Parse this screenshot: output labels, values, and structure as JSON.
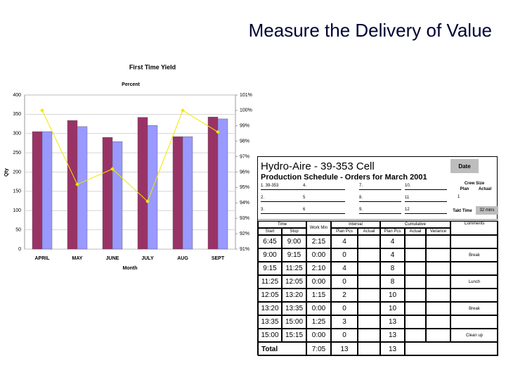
{
  "title": "Measure the Delivery of Value",
  "chart_data": {
    "type": "bar",
    "title": "First Time Yield",
    "subtitle": "Percent",
    "x_label": "Month",
    "y_label": "Qty",
    "categories": [
      "APRIL",
      "MAY",
      "JUNE",
      "JULY",
      "AUG",
      "SEPT"
    ],
    "ylim": [
      0,
      400
    ],
    "yticks": [
      0,
      50,
      100,
      150,
      200,
      250,
      300,
      350,
      400
    ],
    "y2lim": [
      91,
      101
    ],
    "y2ticks": [
      {
        "value": 91,
        "label": "91%"
      },
      {
        "value": 92,
        "label": "92%"
      },
      {
        "value": 93,
        "label": "93%"
      },
      {
        "value": 94,
        "label": "94%"
      },
      {
        "value": 95,
        "label": "95%"
      },
      {
        "value": 96,
        "label": "96%"
      },
      {
        "value": 97,
        "label": "97%"
      },
      {
        "value": 98,
        "label": "98%"
      },
      {
        "value": 99,
        "label": "99%"
      },
      {
        "value": 100,
        "label": "100%"
      },
      {
        "value": 101,
        "label": "101%"
      }
    ],
    "grid": true,
    "series": [
      {
        "type": "bar",
        "color": "#993366",
        "values": [
          305,
          334,
          290,
          342,
          292,
          343
        ]
      },
      {
        "type": "bar",
        "color": "#9999ff",
        "values": [
          305,
          318,
          279,
          321,
          292,
          338
        ]
      },
      {
        "type": "line",
        "color": "#f2e600",
        "axis": "y2",
        "values": [
          100,
          95.2,
          96.2,
          94.1,
          100,
          98.6
        ]
      }
    ]
  },
  "schedule": {
    "title": "Hydro-Aire - 39-353 Cell",
    "subtitle": "Production Schedule - Orders for March 2001",
    "date_label": "Date",
    "crew_size_label": "Crew Size",
    "crew_plan_label": "Plan",
    "crew_actual_label": "Actual",
    "crew_plan": "1",
    "takt_label": "Takt Time",
    "takt_value": "32 mins",
    "orders": [
      [
        "1. 39-353",
        "4.",
        "7.",
        "10."
      ],
      [
        "2.",
        "5",
        "8.",
        "11"
      ],
      [
        "3.",
        "6",
        "9.",
        "12"
      ]
    ],
    "headers": {
      "time": "Time",
      "start": "Start",
      "stop": "Stop",
      "work": "Work Min",
      "interval": "Interval",
      "interval_plan": "Plan Pcs",
      "interval_actual": "Actual",
      "cumulative": "Cumulative",
      "cum_plan": "Plan Pcs",
      "cum_actual": "Actual",
      "variance": "Variance",
      "comments": "Comments"
    },
    "rows": [
      {
        "start": "6:45",
        "stop": "9:00",
        "work": "2:15",
        "plan": "4",
        "cum_plan": "4"
      },
      {
        "start": "9:00",
        "stop": "9:15",
        "work": "0:00",
        "plan": "0",
        "cum_plan": "4",
        "comment": "Break"
      },
      {
        "start": "9:15",
        "stop": "11:25",
        "work": "2:10",
        "plan": "4",
        "cum_plan": "8"
      },
      {
        "start": "11:25",
        "stop": "12:05",
        "work": "0:00",
        "plan": "0",
        "cum_plan": "8",
        "comment": "Lunch"
      },
      {
        "start": "12:05",
        "stop": "13:20",
        "work": "1:15",
        "plan": "2",
        "cum_plan": "10"
      },
      {
        "start": "13:20",
        "stop": "13:35",
        "work": "0:00",
        "plan": "0",
        "cum_plan": "10",
        "comment": "Break"
      },
      {
        "start": "13:35",
        "stop": "15:00",
        "work": "1:25",
        "plan": "3",
        "cum_plan": "13"
      },
      {
        "start": "15:00",
        "stop": "15:15",
        "work": "0:00",
        "plan": "0",
        "cum_plan": "13",
        "comment": "Clean up"
      }
    ],
    "total": {
      "label": "Total",
      "work": "7:05",
      "plan": "13",
      "cum_plan": "13"
    }
  }
}
